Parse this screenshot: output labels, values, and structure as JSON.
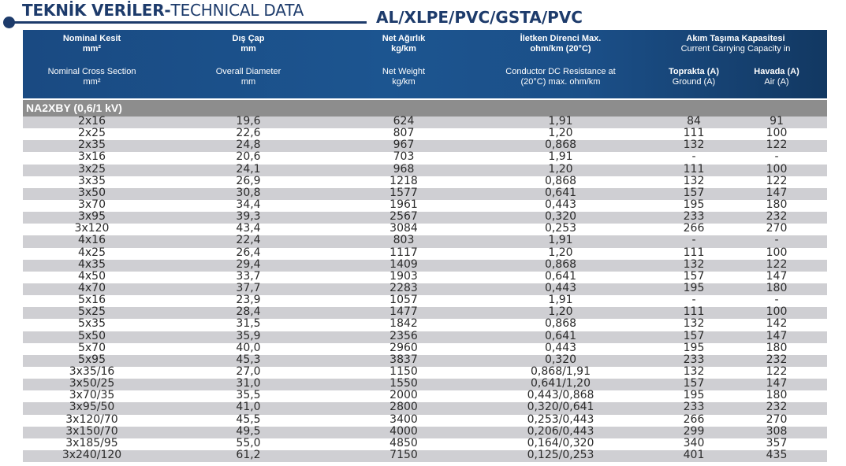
{
  "page": {
    "title_bold": "TEKNİK VERİLER-",
    "title_rest": "TECHNICAL DATA",
    "subtitle": "AL/XLPE/PVC/GSTA/PVC"
  },
  "header": {
    "col1_tr": "Nominal Kesit",
    "col1_tr_unit": "mm²",
    "col1_en": "Nominal Cross Section",
    "col1_en_unit": "mm²",
    "col2_tr": "Dış Çap",
    "col2_tr_unit": "mm",
    "col2_en": "Overall Diameter",
    "col2_en_unit": "mm",
    "col3_tr": "Net Ağırlık",
    "col3_tr_unit": "kg/km",
    "col3_en": "Net Weight",
    "col3_en_unit": "kg/km",
    "col4_tr": "İletken Direnci Max.",
    "col4_tr_unit": "ohm/km (20°C)",
    "col4_en": "Conductor DC Resistance at",
    "col4_en_unit": "(20°C) max. ohm/km",
    "col56_tr": "Akım Taşıma Kapasitesi",
    "col56_en": "Current Carrying Capacity in",
    "col5_tr": "Toprakta (A)",
    "col5_en": "Ground (A)",
    "col6_tr": "Havada (A)",
    "col6_en": "Air (A)"
  },
  "section_label": "NA2XBY (0,6/1 kV)",
  "rows": [
    [
      "2x16",
      "19,6",
      "624",
      "1,91",
      "84",
      "91"
    ],
    [
      "2x25",
      "22,6",
      "807",
      "1,20",
      "111",
      "100"
    ],
    [
      "2x35",
      "24,8",
      "967",
      "0,868",
      "132",
      "122"
    ],
    [
      "3x16",
      "20,6",
      "703",
      "1,91",
      "-",
      "-"
    ],
    [
      "3x25",
      "24,1",
      "968",
      "1,20",
      "111",
      "100"
    ],
    [
      "3x35",
      "26,9",
      "1218",
      "0,868",
      "132",
      "122"
    ],
    [
      "3x50",
      "30,8",
      "1577",
      "0,641",
      "157",
      "147"
    ],
    [
      "3x70",
      "34,4",
      "1961",
      "0,443",
      "195",
      "180"
    ],
    [
      "3x95",
      "39,3",
      "2567",
      "0,320",
      "233",
      "232"
    ],
    [
      "3x120",
      "43,4",
      "3084",
      "0,253",
      "266",
      "270"
    ],
    [
      "4x16",
      "22,4",
      "803",
      "1,91",
      "-",
      "-"
    ],
    [
      "4x25",
      "26,4",
      "1117",
      "1,20",
      "111",
      "100"
    ],
    [
      "4x35",
      "29,4",
      "1409",
      "0,868",
      "132",
      "122"
    ],
    [
      "4x50",
      "33,7",
      "1903",
      "0,641",
      "157",
      "147"
    ],
    [
      "4x70",
      "37,7",
      "2283",
      "0,443",
      "195",
      "180"
    ],
    [
      "5x16",
      "23,9",
      "1057",
      "1,91",
      "-",
      "-"
    ],
    [
      "5x25",
      "28,4",
      "1477",
      "1,20",
      "111",
      "100"
    ],
    [
      "5x35",
      "31,5",
      "1842",
      "0,868",
      "132",
      "142"
    ],
    [
      "5x50",
      "35,9",
      "2356",
      "0,641",
      "157",
      "147"
    ],
    [
      "5x70",
      "40,0",
      "2960",
      "0,443",
      "195",
      "180"
    ],
    [
      "5x95",
      "45,3",
      "3837",
      "0,320",
      "233",
      "232"
    ],
    [
      "3x35/16",
      "27,0",
      "1150",
      "0,868/1,91",
      "132",
      "122"
    ],
    [
      "3x50/25",
      "31,0",
      "1550",
      "0,641/1,20",
      "157",
      "147"
    ],
    [
      "3x70/35",
      "35,5",
      "2000",
      "0,443/0,868",
      "195",
      "180"
    ],
    [
      "3x95/50",
      "41,0",
      "2800",
      "0,320/0,641",
      "233",
      "232"
    ],
    [
      "3x120/70",
      "45,5",
      "3400",
      "0,253/0,443",
      "266",
      "270"
    ],
    [
      "3x150/70",
      "49,5",
      "4000",
      "0,206/0,443",
      "299",
      "308"
    ],
    [
      "3x185/95",
      "55,0",
      "4850",
      "0,164/0,320",
      "340",
      "357"
    ],
    [
      "3x240/120",
      "61,2",
      "7150",
      "0,125/0,253",
      "401",
      "435"
    ]
  ],
  "colors": {
    "header_blue": "#1c5590",
    "title_navy": "#1d3b6b",
    "section_gray": "#8d8d8d",
    "row_shade": "#cfcfd3"
  }
}
